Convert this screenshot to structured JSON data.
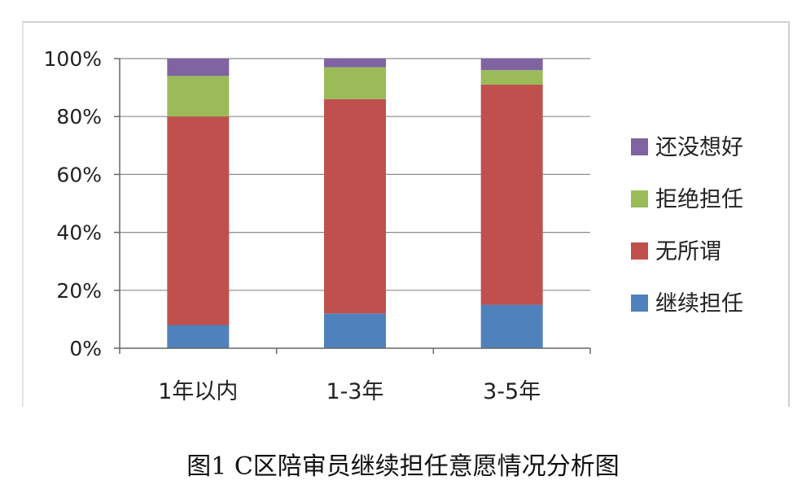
{
  "caption": "图1  C区陪审员继续担任意愿情况分析图",
  "chart_data": {
    "type": "bar",
    "stacked": true,
    "percent": true,
    "categories": [
      "1年以内",
      "1-3年",
      "3-5年"
    ],
    "series": [
      {
        "name": "继续担任",
        "color": "#4f81bd",
        "values": [
          8,
          12,
          15
        ]
      },
      {
        "name": "无所谓",
        "color": "#c0504d",
        "values": [
          72,
          74,
          76
        ]
      },
      {
        "name": "拒绝担任",
        "color": "#9bbb59",
        "values": [
          14,
          11,
          5
        ]
      },
      {
        "name": "还没想好",
        "color": "#8064a2",
        "values": [
          6,
          3,
          4
        ]
      }
    ],
    "ylim": [
      0,
      100
    ],
    "yticks": [
      "0%",
      "20%",
      "40%",
      "60%",
      "80%",
      "100%"
    ],
    "grid": true,
    "legend_position": "right",
    "title": "",
    "xlabel": "",
    "ylabel": ""
  }
}
